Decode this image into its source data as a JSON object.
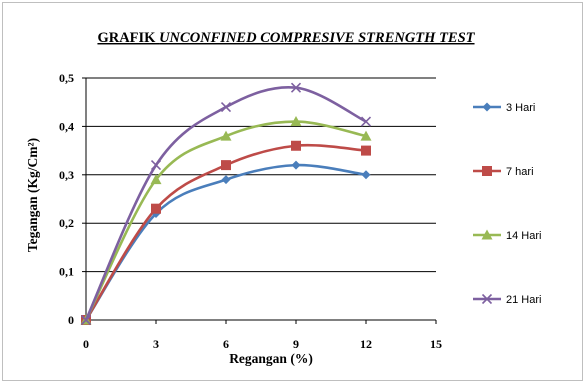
{
  "chart_data": {
    "type": "line",
    "title_plain": "GRAFIK ",
    "title_italic": "UNCONFINED  COMPRESIVE STRENGTH TEST",
    "xlabel": "Regangan (%)",
    "ylabel": "Tegangan (Kg/Cm²)",
    "xlim": [
      0,
      15
    ],
    "ylim": [
      0,
      0.5
    ],
    "xticks": [
      0,
      3,
      6,
      9,
      12,
      15
    ],
    "xtick_labels": [
      "0",
      "3",
      "6",
      "9",
      "12",
      "15"
    ],
    "yticks": [
      0,
      0.1,
      0.2,
      0.3,
      0.4,
      0.5
    ],
    "ytick_labels": [
      "0",
      "0,1",
      "0,2",
      "0,3",
      "0,4",
      "0,5"
    ],
    "grid": "horizontal",
    "legend_position": "right",
    "x": [
      0,
      3,
      6,
      9,
      12
    ],
    "series": [
      {
        "name": "3 Hari",
        "values": [
          0,
          0.22,
          0.29,
          0.32,
          0.3
        ],
        "color": "#4a7ebb",
        "marker": "diamond"
      },
      {
        "name": "7 hari",
        "values": [
          0,
          0.23,
          0.32,
          0.36,
          0.35
        ],
        "color": "#be4b48",
        "marker": "square"
      },
      {
        "name": "14 Hari",
        "values": [
          0,
          0.29,
          0.38,
          0.41,
          0.38
        ],
        "color": "#98b954",
        "marker": "triangle"
      },
      {
        "name": "21 Hari",
        "values": [
          0,
          0.32,
          0.44,
          0.48,
          0.41
        ],
        "color": "#7d60a0",
        "marker": "x"
      }
    ]
  }
}
